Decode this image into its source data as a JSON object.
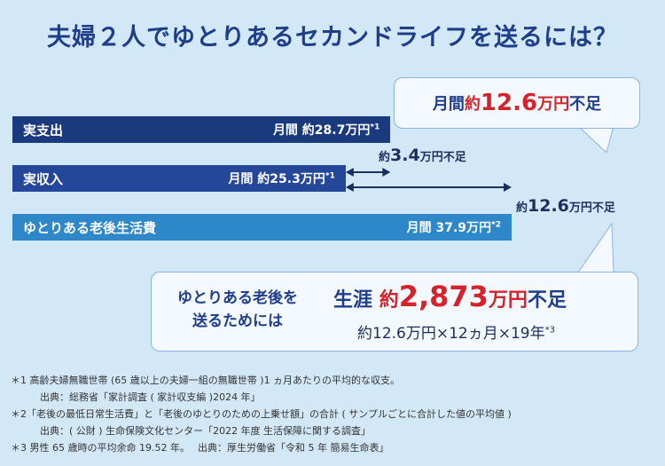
{
  "title": "夫婦２人でゆとりあるセカンドライフを送るには？",
  "chart_data": {
    "type": "bar",
    "orientation": "horizontal",
    "unit": "万円",
    "bars": [
      {
        "label": "実支出",
        "value": 28.7,
        "value_text": "月間 約28.7万円",
        "note": "*1"
      },
      {
        "label": "実収入",
        "value": 25.3,
        "value_text": "月間 約25.3万円",
        "note": "*1"
      },
      {
        "label": "ゆとりある老後生活費",
        "value": 37.9,
        "value_text": "月間 37.9万円",
        "note": "*2"
      }
    ],
    "annotations": [
      {
        "prefix": "約",
        "num": "3.4",
        "suffix": "万円不足"
      },
      {
        "prefix": "約",
        "num": "12.6",
        "suffix": "万円不足"
      }
    ]
  },
  "bubble_top": {
    "prefix": "月間",
    "pre_red": "約",
    "red_num": "12.6",
    "red_unit": "万円",
    "suffix": "不足"
  },
  "bubble_bottom": {
    "lead_1": "ゆとりある老後を",
    "lead_2": "送るためには",
    "pre": "生涯",
    "red_pre": "約",
    "red_num": "2,873",
    "red_unit": "万円",
    "suffix": "不足",
    "calc": "約12.6万円×12ヵ月×19年",
    "calc_note": "*3"
  },
  "notes": [
    "＊1 高齢夫婦無職世帯 (65 歳以上の夫婦一組の無職世帯 )1 ヵ月あたりの平均的な収支。",
    "　　　出典：総務省「家計調査 ( 家計収支編 )2024 年」",
    "＊2「老後の最低日常生活費」と「老後のゆとりのための上乗せ額」の合計 ( サンプルごとに合計した値の平均値 )",
    "　　　出典：( 公財 ) 生命保険文化センター「2022 年度 生活保障に関する調査」",
    "＊3 男性 65 歳時の平均余命 19.52 年。　 出典：厚生労働省「令和 5 年 簡易生命表」"
  ],
  "colors": {
    "expense": "#1b3a7e",
    "income": "#24479a",
    "ideal": "#2d87c9",
    "accent_red": "#d4232b",
    "bg": "#d3e8f7"
  }
}
